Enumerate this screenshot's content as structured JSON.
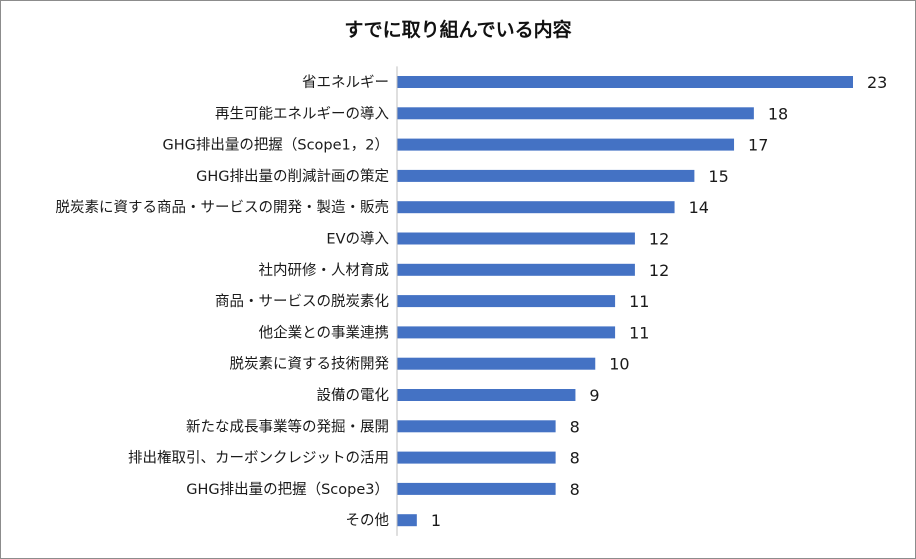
{
  "chart_data": {
    "type": "bar",
    "orientation": "horizontal",
    "title": "すでに取り組んでいる内容",
    "xlabel": "",
    "ylabel": "",
    "categories": [
      "省エネルギー",
      "再生可能エネルギーの導入",
      "GHG排出量の把握（Scope1，2）",
      "GHG排出量の削減計画の策定",
      "脱炭素に資する商品・サービスの開発・製造・販売",
      "EVの導入",
      "社内研修・人材育成",
      "商品・サービスの脱炭素化",
      "他企業との事業連携",
      "脱炭素に資する技術開発",
      "設備の電化",
      "新たな成長事業等の発掘・展開",
      "排出権取引、カーボンクレジットの活用",
      "GHG排出量の把握（Scope3）",
      "その他"
    ],
    "values": [
      23,
      18,
      17,
      15,
      14,
      12,
      12,
      11,
      11,
      10,
      9,
      8,
      8,
      8,
      1
    ],
    "xlim": [
      0,
      23
    ],
    "grid": false,
    "legend": "none",
    "bar_color": "#4472c4",
    "axis_color": "#bfbfbf",
    "label_color": "#1a1a1a"
  }
}
